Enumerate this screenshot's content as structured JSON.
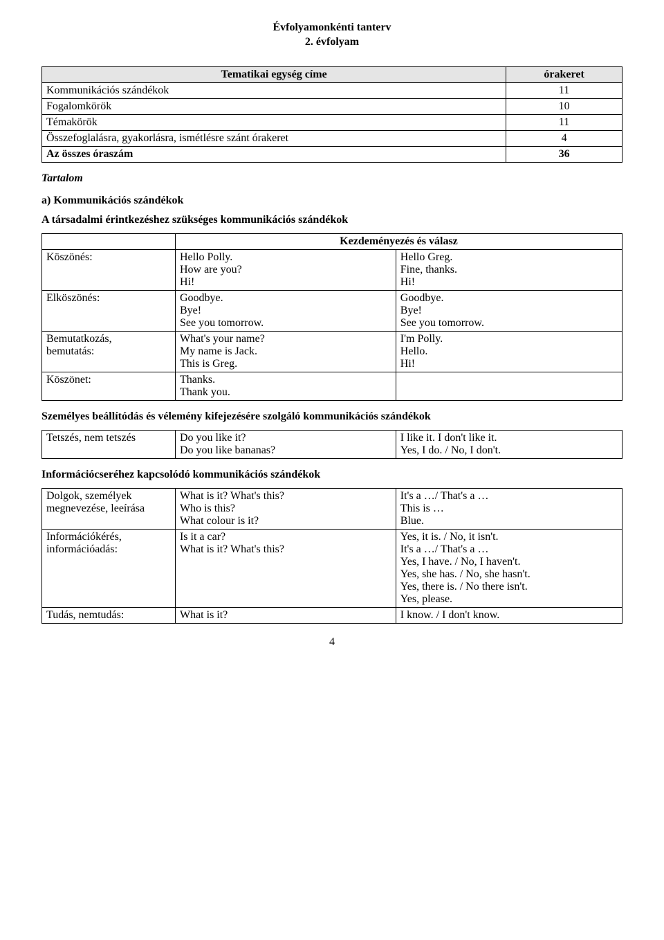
{
  "title": {
    "line1": "Évfolyamonkénti tanterv",
    "line2": "2. évfolyam"
  },
  "overview": {
    "header_left": "Tematikai egység címe",
    "header_right": "órakeret",
    "rows": [
      {
        "label": "Kommunikációs szándékok",
        "val": "11"
      },
      {
        "label": "Fogalomkörök",
        "val": "10"
      },
      {
        "label": "Témakörök",
        "val": "11"
      },
      {
        "label": "Összefoglalásra, gyakorlásra, ismétlésre szánt órakeret",
        "val": "4"
      },
      {
        "label": "Az összes óraszám",
        "val": "36",
        "bold": true
      }
    ],
    "tartalom": "Tartalom"
  },
  "section_a_label": "a)  Kommunikációs szándékok",
  "sub1_title": "A társadalmi érintkezéshez szükséges kommunikációs szándékok",
  "sub1_header": "Kezdeményezés és válasz",
  "sub1_rows": [
    {
      "c1": "Köszönés:",
      "c2": "Hello Polly.\nHow are you?\nHi!",
      "c3": "Hello Greg.\nFine, thanks.\nHi!"
    },
    {
      "c1": "Elköszönés:",
      "c2": "Goodbye.\nBye!\nSee you tomorrow.",
      "c3": "Goodbye.\nBye!\nSee you tomorrow."
    },
    {
      "c1": "Bemutatkozás,\nbemutatás:",
      "c2": "What's your name?\nMy name is Jack.\nThis is Greg.",
      "c3": "I'm Polly.\nHello.\nHi!"
    },
    {
      "c1": "Köszönet:",
      "c2": "Thanks.\nThank you.",
      "c3": ""
    }
  ],
  "sub2_title": "Személyes beállítódás és vélemény kifejezésére szolgáló kommunikációs szándékok",
  "sub2_rows": [
    {
      "c1": "Tetszés, nem tetszés",
      "c2": "Do you like it?\nDo you like bananas?",
      "c3": "I like it. I don't like it.\nYes, I do. / No, I don't."
    }
  ],
  "sub3_title": "Információcseréhez kapcsolódó kommunikációs szándékok",
  "sub3_rows": [
    {
      "c1": "Dolgok, személyek\nmegnevezése, leeírása",
      "c2": "What is it? What's this?\nWho is this?\nWhat colour is it?",
      "c3": "It's a …/ That's a …\nThis is …\nBlue."
    },
    {
      "c1": "Információkérés,\ninformációadás:",
      "c2": "Is it a car?\nWhat is it? What's this?",
      "c3": "Yes, it is. / No, it isn't.\nIt's a …/ That's a …\nYes, I have. / No, I haven't.\nYes, she has. / No, she hasn't.\nYes, there is. / No there isn't.\nYes, please."
    },
    {
      "c1": "Tudás, nemtudás:",
      "c2": "What is it?",
      "c3": "I know. / I don't know."
    }
  ],
  "page_number": "4",
  "colors": {
    "header_bg": "#e5e5e5",
    "border": "#000000",
    "text": "#000000",
    "background": "#ffffff"
  }
}
